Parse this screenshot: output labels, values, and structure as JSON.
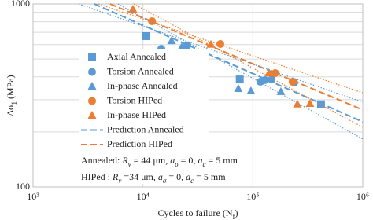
{
  "chart_data": {
    "type": "scatter",
    "xlabel": [
      {
        "text": "Cycles to failure (N"
      },
      {
        "text": "f",
        "sub": true
      },
      {
        "text": ")"
      }
    ],
    "ylabel": [
      {
        "text": "Δσ"
      },
      {
        "text": "1",
        "sub": true
      },
      {
        "text": " (MPa)"
      }
    ],
    "xscale": "log",
    "yscale": "log",
    "grid": true,
    "xlim": [
      1000,
      1000000
    ],
    "ylim": [
      100,
      1000
    ],
    "xticks": [
      {
        "value": 1000,
        "label": "10³"
      },
      {
        "value": 10000,
        "label": "10⁴"
      },
      {
        "value": 100000,
        "label": "10⁵"
      },
      {
        "value": 1000000,
        "label": "10⁶"
      }
    ],
    "yticks": [
      100,
      1000
    ],
    "yminor": [
      200,
      300,
      400,
      500,
      600,
      700,
      800,
      900
    ],
    "series": [
      {
        "name": "Axial Annealed",
        "marker": "square",
        "color": "#5b9bd5",
        "x": [
          10600,
          27500,
          76000,
          417000
        ],
        "values": [
          667,
          445,
          387,
          283
        ]
      },
      {
        "name": "Torsion Annealed",
        "marker": "circle",
        "color": "#5b9bd5",
        "x": [
          14700,
          25300,
          117000,
          129000,
          148000,
          238000
        ],
        "values": [
          569,
          593,
          376,
          384,
          387,
          372
        ]
      },
      {
        "name": "In-phase Annealed",
        "marker": "triangle",
        "color": "#5b9bd5",
        "x": [
          18200,
          22500,
          73800,
          96100,
          180000
        ],
        "values": [
          628,
          580,
          344,
          334,
          331
        ]
      },
      {
        "name": "Torsion HIPed",
        "marker": "circle",
        "color": "#ed7d31",
        "x": [
          12100,
          50600,
          160000,
          230000
        ],
        "values": [
          805,
          604,
          419,
          376
        ]
      },
      {
        "name": "In-phase HIPed",
        "marker": "triangle",
        "color": "#ed7d31",
        "x": [
          8110,
          41500,
          140000,
          254000,
          331000
        ],
        "values": [
          933,
          600,
          419,
          283,
          285
        ]
      },
      {
        "name": "Prediction Annealed",
        "marker": "dashed",
        "color": "#5b9bd5",
        "x": [
          3610,
          1000000
        ],
        "values": [
          1000,
          227
        ]
      },
      {
        "name": "Prediction HIPed",
        "marker": "dashed",
        "color": "#ed7d31",
        "x": [
          5020,
          1000000
        ],
        "values": [
          1000,
          264
        ]
      },
      {
        "marker": "dotted",
        "color": "#5b9bd5",
        "x": [
          2600,
          1000000
        ],
        "values": [
          1000,
          291
        ]
      },
      {
        "marker": "dotted",
        "color": "#5b9bd5",
        "x": [
          5930,
          1000000
        ],
        "values": [
          1000,
          183
        ]
      },
      {
        "marker": "dotted",
        "color": "#ed7d31",
        "x": [
          3930,
          1000000
        ],
        "values": [
          1000,
          327
        ]
      },
      {
        "marker": "dotted",
        "color": "#ed7d31",
        "x": [
          8240,
          1000000
        ],
        "values": [
          1000,
          212
        ]
      }
    ],
    "annotations": [
      [
        {
          "text": "Annealed: "
        },
        {
          "text": "R",
          "italic": true
        },
        {
          "text": "v",
          "sub": true,
          "italic": true
        },
        {
          "text": " = 44 μm, "
        },
        {
          "text": "a",
          "italic": true
        },
        {
          "text": "σ",
          "sub": true,
          "italic": true
        },
        {
          "text": " = 0, "
        },
        {
          "text": "a",
          "italic": true
        },
        {
          "text": "c",
          "sub": true,
          "italic": true
        },
        {
          "text": " = 5 mm"
        }
      ],
      [
        {
          "text": "HIPed : "
        },
        {
          "text": "R",
          "italic": true
        },
        {
          "text": "v",
          "sub": true,
          "italic": true
        },
        {
          "text": " =34 μm, "
        },
        {
          "text": "a",
          "italic": true
        },
        {
          "text": "σ",
          "sub": true,
          "italic": true
        },
        {
          "text": " = 0, "
        },
        {
          "text": "a",
          "italic": true
        },
        {
          "text": "c",
          "sub": true,
          "italic": true
        },
        {
          "text": " = 5 mm"
        }
      ]
    ]
  }
}
